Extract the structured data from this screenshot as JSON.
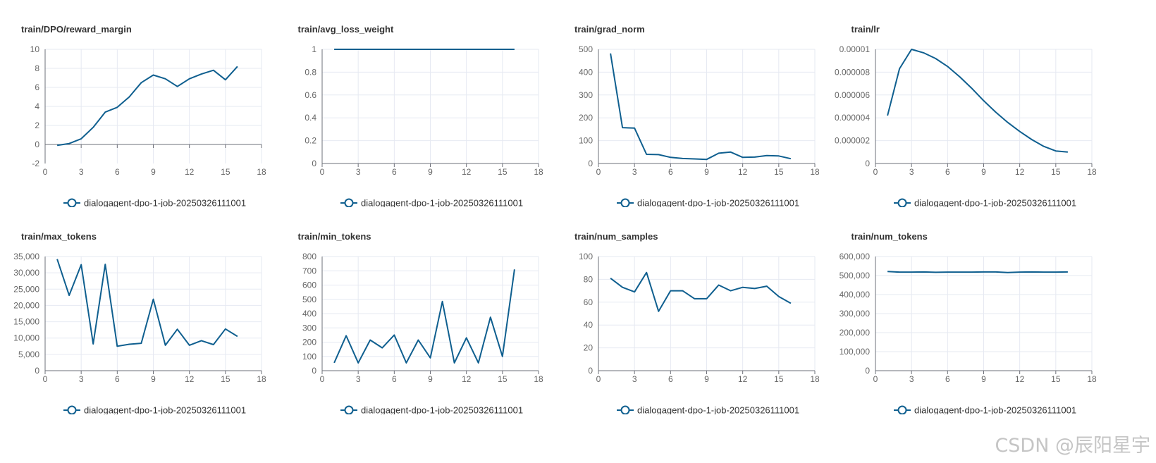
{
  "colors": {
    "series": "#0f5f8f",
    "grid": "#e6e9f2",
    "axis": "#6e7079",
    "text": "#666666"
  },
  "watermark": "CSDN @辰阳星宇",
  "chart_data": [
    {
      "type": "line",
      "title": "train/DPO/reward_margin",
      "xlim": [
        0,
        18
      ],
      "xticks": [
        0,
        3,
        6,
        9,
        12,
        15,
        18
      ],
      "ylim": [
        -2,
        10
      ],
      "yticks": [
        -2,
        0,
        2,
        4,
        6,
        8,
        10
      ],
      "ytick_labels": [
        "-2",
        "0",
        "2",
        "4",
        "6",
        "8",
        "10"
      ],
      "zero_line": true,
      "series": [
        {
          "name": "dialogagent-dpo-1-job-20250326111001",
          "x": [
            1,
            2,
            3,
            4,
            5,
            6,
            7,
            8,
            9,
            10,
            11,
            12,
            13,
            14,
            15,
            16
          ],
          "y": [
            -0.1,
            0.1,
            0.6,
            1.8,
            3.4,
            3.9,
            5.0,
            6.5,
            7.3,
            6.9,
            6.1,
            6.9,
            7.4,
            7.8,
            6.8,
            8.2
          ]
        }
      ]
    },
    {
      "type": "line",
      "title": "train/avg_loss_weight",
      "xlim": [
        0,
        18
      ],
      "xticks": [
        0,
        3,
        6,
        9,
        12,
        15,
        18
      ],
      "ylim": [
        0,
        1
      ],
      "yticks": [
        0,
        0.2,
        0.4,
        0.6,
        0.8,
        1
      ],
      "ytick_labels": [
        "0",
        "0.2",
        "0.4",
        "0.6",
        "0.8",
        "1"
      ],
      "series": [
        {
          "name": "dialogagent-dpo-1-job-20250326111001",
          "x": [
            1,
            2,
            3,
            4,
            5,
            6,
            7,
            8,
            9,
            10,
            11,
            12,
            13,
            14,
            15,
            16
          ],
          "y": [
            1,
            1,
            1,
            1,
            1,
            1,
            1,
            1,
            1,
            1,
            1,
            1,
            1,
            1,
            1,
            1
          ]
        }
      ]
    },
    {
      "type": "line",
      "title": "train/grad_norm",
      "xlim": [
        0,
        18
      ],
      "xticks": [
        0,
        3,
        6,
        9,
        12,
        15,
        18
      ],
      "ylim": [
        0,
        500
      ],
      "yticks": [
        0,
        100,
        200,
        300,
        400,
        500
      ],
      "ytick_labels": [
        "0",
        "100",
        "200",
        "300",
        "400",
        "500"
      ],
      "series": [
        {
          "name": "dialogagent-dpo-1-job-20250326111001",
          "x": [
            1,
            2,
            3,
            4,
            5,
            6,
            7,
            8,
            9,
            10,
            11,
            12,
            13,
            14,
            15,
            16
          ],
          "y": [
            482,
            157,
            155,
            40,
            39,
            27,
            22,
            20,
            18,
            45,
            50,
            27,
            28,
            35,
            33,
            21
          ]
        }
      ]
    },
    {
      "type": "line",
      "title": "train/lr",
      "xlim": [
        0,
        18
      ],
      "xticks": [
        0,
        3,
        6,
        9,
        12,
        15,
        18
      ],
      "ylim": [
        0,
        1e-05
      ],
      "yticks": [
        0,
        2e-06,
        4e-06,
        6e-06,
        8e-06,
        1e-05
      ],
      "ytick_labels": [
        "0",
        "0.000002",
        "0.000004",
        "0.000006",
        "0.000008",
        "0.00001"
      ],
      "series": [
        {
          "name": "dialogagent-dpo-1-job-20250326111001",
          "x": [
            1,
            2,
            3,
            4,
            5,
            6,
            7,
            8,
            9,
            10,
            11,
            12,
            13,
            14,
            15,
            16
          ],
          "y": [
            4.2e-06,
            8.3e-06,
            1e-05,
            9.7e-06,
            9.2e-06,
            8.5e-06,
            7.6e-06,
            6.6e-06,
            5.5e-06,
            4.5e-06,
            3.6e-06,
            2.8e-06,
            2.1e-06,
            1.5e-06,
            1.1e-06,
            1e-06
          ]
        }
      ]
    },
    {
      "type": "line",
      "title": "train/max_tokens",
      "xlim": [
        0,
        18
      ],
      "xticks": [
        0,
        3,
        6,
        9,
        12,
        15,
        18
      ],
      "ylim": [
        0,
        35000
      ],
      "yticks": [
        0,
        5000,
        10000,
        15000,
        20000,
        25000,
        30000,
        35000
      ],
      "ytick_labels": [
        "0",
        "5,000",
        "10,000",
        "15,000",
        "20,000",
        "25,000",
        "30,000",
        "35,000"
      ],
      "series": [
        {
          "name": "dialogagent-dpo-1-job-20250326111001",
          "x": [
            1,
            2,
            3,
            4,
            5,
            6,
            7,
            8,
            9,
            10,
            11,
            12,
            13,
            14,
            15,
            16
          ],
          "y": [
            34200,
            23100,
            32500,
            8200,
            32600,
            7500,
            8100,
            8400,
            21900,
            7800,
            12700,
            7800,
            9200,
            8000,
            12800,
            10500
          ]
        }
      ]
    },
    {
      "type": "line",
      "title": "train/min_tokens",
      "xlim": [
        0,
        18
      ],
      "xticks": [
        0,
        3,
        6,
        9,
        12,
        15,
        18
      ],
      "ylim": [
        0,
        800
      ],
      "yticks": [
        0,
        100,
        200,
        300,
        400,
        500,
        600,
        700,
        800
      ],
      "ytick_labels": [
        "0",
        "100",
        "200",
        "300",
        "400",
        "500",
        "600",
        "700",
        "800"
      ],
      "series": [
        {
          "name": "dialogagent-dpo-1-job-20250326111001",
          "x": [
            1,
            2,
            3,
            4,
            5,
            6,
            7,
            8,
            9,
            10,
            11,
            12,
            13,
            14,
            15,
            16
          ],
          "y": [
            55,
            245,
            55,
            215,
            160,
            250,
            55,
            215,
            90,
            485,
            55,
            230,
            55,
            375,
            100,
            710
          ]
        }
      ]
    },
    {
      "type": "line",
      "title": "train/num_samples",
      "xlim": [
        0,
        18
      ],
      "xticks": [
        0,
        3,
        6,
        9,
        12,
        15,
        18
      ],
      "ylim": [
        0,
        100
      ],
      "yticks": [
        0,
        20,
        40,
        60,
        80,
        100
      ],
      "ytick_labels": [
        "0",
        "20",
        "40",
        "60",
        "80",
        "100"
      ],
      "series": [
        {
          "name": "dialogagent-dpo-1-job-20250326111001",
          "x": [
            1,
            2,
            3,
            4,
            5,
            6,
            7,
            8,
            9,
            10,
            11,
            12,
            13,
            14,
            15,
            16
          ],
          "y": [
            81,
            73,
            69,
            86,
            52,
            70,
            70,
            63,
            63,
            75,
            70,
            73,
            72,
            74,
            65,
            59
          ]
        }
      ]
    },
    {
      "type": "line",
      "title": "train/num_tokens",
      "xlim": [
        0,
        18
      ],
      "xticks": [
        0,
        3,
        6,
        9,
        12,
        15,
        18
      ],
      "ylim": [
        0,
        600000
      ],
      "yticks": [
        0,
        100000,
        200000,
        300000,
        400000,
        500000,
        600000
      ],
      "ytick_labels": [
        "0",
        "100,000",
        "200,000",
        "300,000",
        "400,000",
        "500,000",
        "600,000"
      ],
      "series": [
        {
          "name": "dialogagent-dpo-1-job-20250326111001",
          "x": [
            1,
            2,
            3,
            4,
            5,
            6,
            7,
            8,
            9,
            10,
            11,
            12,
            13,
            14,
            15,
            16
          ],
          "y": [
            521000,
            518000,
            518000,
            519000,
            517000,
            518000,
            518000,
            518000,
            519000,
            519000,
            516000,
            518000,
            519000,
            518000,
            518000,
            519000
          ]
        }
      ]
    }
  ]
}
